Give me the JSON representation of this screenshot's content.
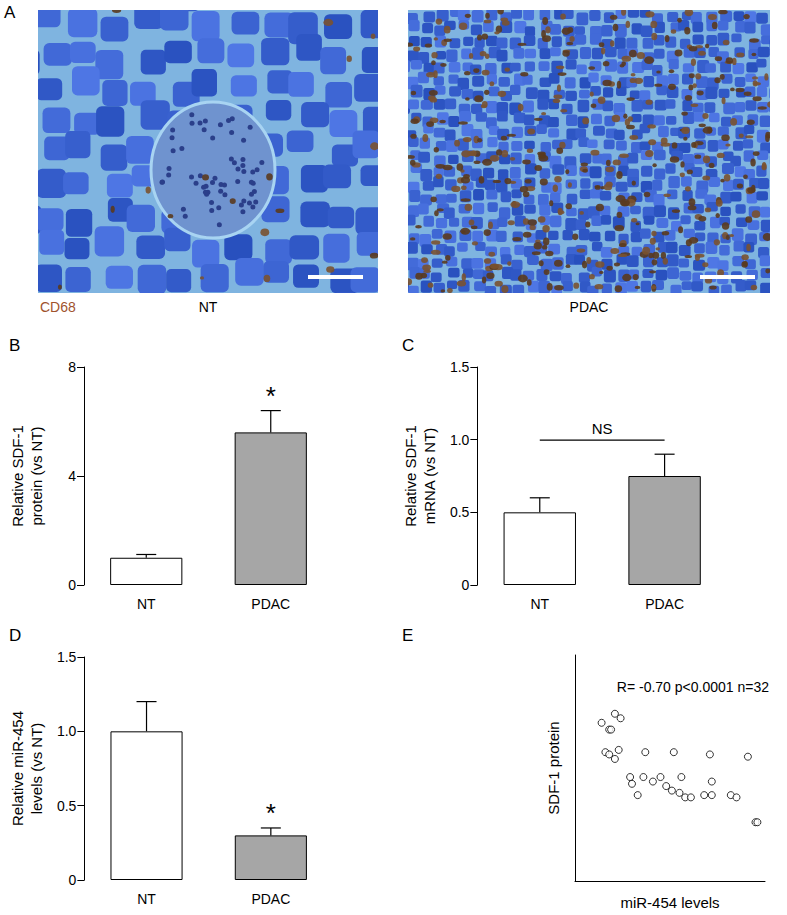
{
  "panel_A": {
    "panel": "A",
    "stain_label": "CD68",
    "stain_color": "#a0522d",
    "images": [
      {
        "caption": "NT"
      },
      {
        "caption": "PDAC"
      }
    ]
  },
  "chart_data": [
    {
      "type": "bar",
      "panel": "B",
      "ylabel": "Relative SDF-1\nprotein (vs NT)",
      "categories": [
        "NT",
        "PDAC"
      ],
      "values": [
        1.0,
        5.6
      ],
      "errors": [
        0.12,
        0.8
      ],
      "colors": [
        "#ffffff",
        "#a6a6a6"
      ],
      "ylim": [
        0,
        8
      ],
      "yticks": [
        0,
        4,
        8
      ],
      "grid": false,
      "annotations": [
        {
          "text": "*",
          "categories": [
            "PDAC"
          ]
        }
      ]
    },
    {
      "type": "bar",
      "panel": "C",
      "ylabel": "Relative SDF-1\nmRNA (vs NT)",
      "categories": [
        "NT",
        "PDAC"
      ],
      "values": [
        0.5,
        0.75
      ],
      "errors": [
        0.1,
        0.15
      ],
      "colors": [
        "#ffffff",
        "#a6a6a6"
      ],
      "ylim": [
        0,
        1.5
      ],
      "yticks": [
        0,
        0.5,
        {
          "value": 1,
          "label": "1.0"
        },
        1.5
      ],
      "grid": false,
      "annotations": [
        {
          "text": "NS",
          "categories": [
            "NT",
            "PDAC"
          ]
        }
      ]
    },
    {
      "type": "bar",
      "panel": "D",
      "ylabel": "Relative miR-454\nlevels (vs NT)",
      "categories": [
        "NT",
        "PDAC"
      ],
      "values": [
        1.0,
        0.3
      ],
      "errors": [
        0.2,
        0.05
      ],
      "colors": [
        "#ffffff",
        "#a6a6a6"
      ],
      "ylim": [
        0,
        1.5
      ],
      "yticks": [
        0,
        0.5,
        {
          "value": 1,
          "label": "1.0"
        },
        1.5
      ],
      "grid": false,
      "annotations": [
        {
          "text": "*",
          "categories": [
            "PDAC"
          ]
        }
      ]
    },
    {
      "type": "scatter",
      "panel": "E",
      "xlabel": "miR-454 levels",
      "ylabel": "SDF-1 protein",
      "x": [
        1.4,
        2.1,
        2.4,
        1.8,
        1.9,
        1.6,
        1.8,
        2.1,
        2.3,
        2.9,
        3.6,
        4.5,
        5.6,
        3.0,
        3.3,
        4.1,
        4.8,
        5.1,
        5.5,
        5.8,
        6.1,
        7.2,
        7.2,
        6.8,
        3.7,
        5.2,
        7.1,
        9.1,
        8.2,
        8.5,
        9.5,
        9.6
      ],
      "values": [
        7.0,
        7.4,
        7.2,
        6.7,
        6.7,
        5.7,
        5.6,
        5.4,
        5.8,
        4.6,
        4.6,
        4.6,
        4.6,
        4.3,
        3.8,
        4.4,
        4.2,
        4.0,
        3.9,
        3.7,
        3.7,
        3.8,
        4.4,
        3.8,
        5.7,
        5.7,
        5.6,
        5.5,
        3.8,
        3.7,
        2.6,
        2.6
      ],
      "xlim": [
        0,
        10
      ],
      "ylim": [
        0,
        10
      ],
      "tick_labels": false,
      "grid": false,
      "marker": "open_circle",
      "color": "#000000",
      "annotations": [
        {
          "text": "R= -0.70 p<0.0001 n=32"
        }
      ]
    }
  ]
}
